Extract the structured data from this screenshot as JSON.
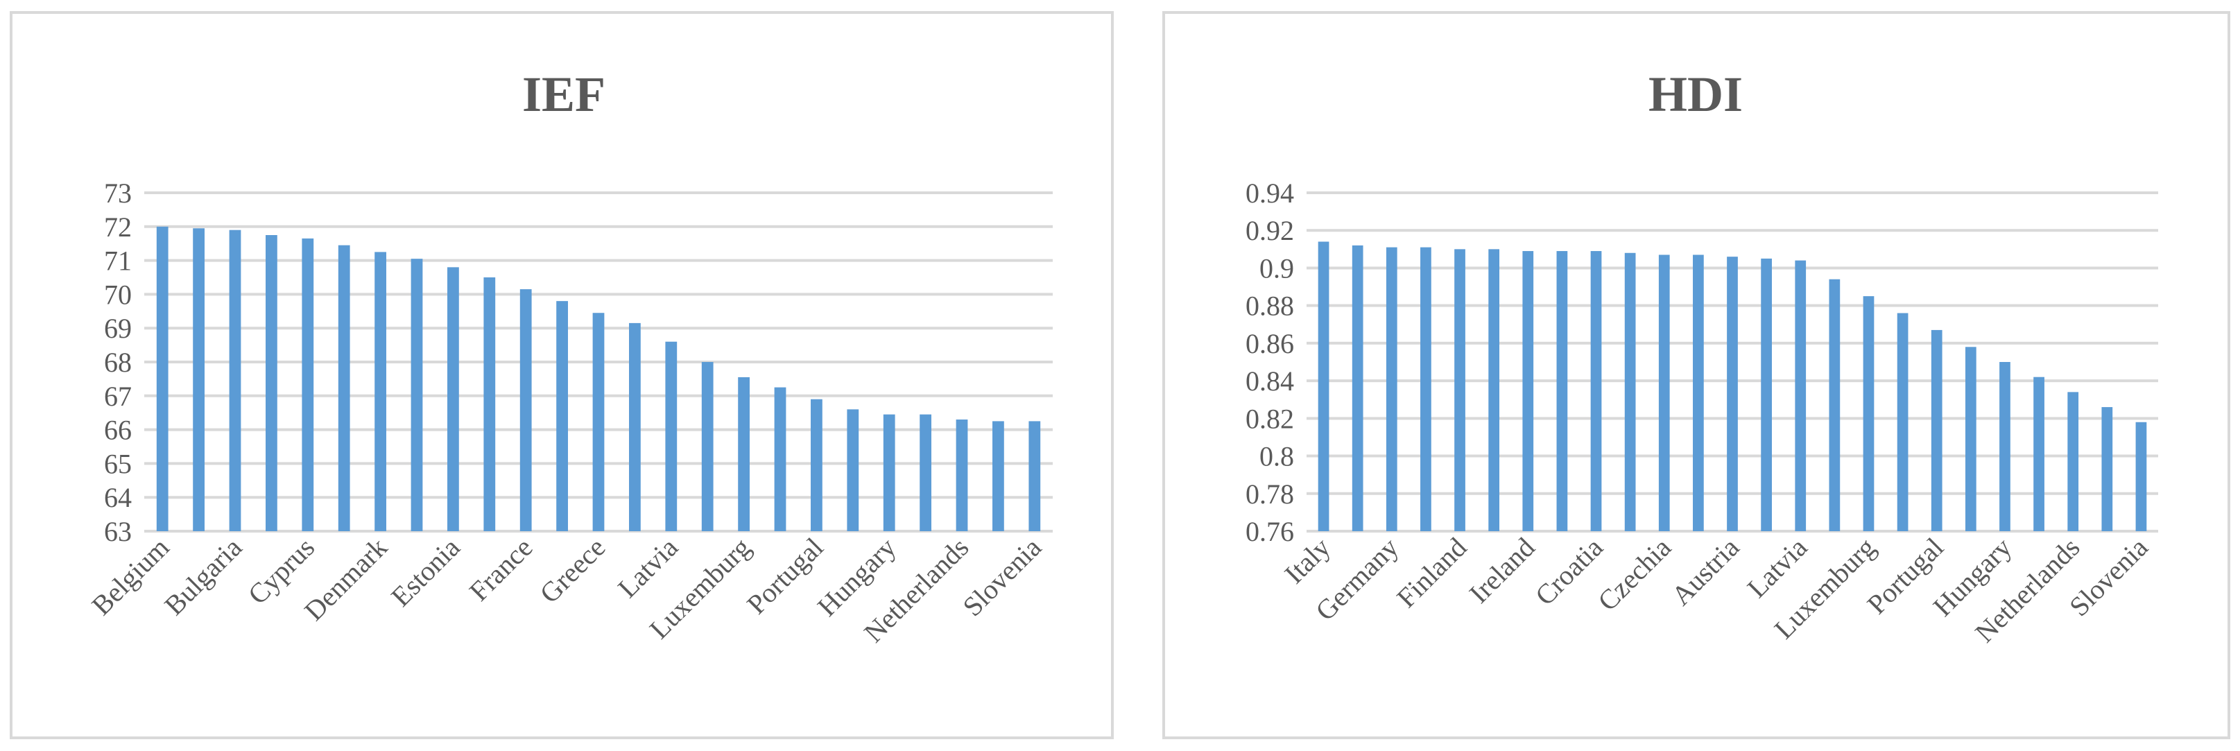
{
  "chart_data": [
    {
      "type": "bar",
      "title": "IEF",
      "xlabel": "",
      "ylabel": "",
      "ylim": [
        63,
        73
      ],
      "yticks": [
        63,
        64,
        65,
        66,
        67,
        68,
        69,
        70,
        71,
        72,
        73
      ],
      "grid": true,
      "color": "#5b9bd5",
      "categories": [
        "Belgium",
        "",
        "Bulgaria",
        "",
        "Cyprus",
        "",
        "Denmark",
        "",
        "Estonia",
        "",
        "France",
        "",
        "Greece",
        "",
        "Latvia",
        "",
        "Luxemburg",
        "",
        "Portugal",
        "",
        "Hungary",
        "",
        "Netherlands",
        "",
        "Slovenia"
      ],
      "values": [
        72.0,
        71.95,
        71.9,
        71.75,
        71.65,
        71.45,
        71.25,
        71.05,
        70.8,
        70.5,
        70.15,
        69.8,
        69.45,
        69.15,
        68.6,
        68.0,
        67.55,
        67.25,
        66.9,
        66.6,
        66.45,
        66.45,
        66.3,
        66.25,
        66.25
      ]
    },
    {
      "type": "bar",
      "title": "HDI",
      "xlabel": "",
      "ylabel": "",
      "ylim": [
        0.76,
        0.94
      ],
      "yticks": [
        0.76,
        0.78,
        0.8,
        0.82,
        0.84,
        0.86,
        0.88,
        0.9,
        0.92,
        0.94
      ],
      "grid": true,
      "color": "#5b9bd5",
      "categories": [
        "Italy",
        "",
        "Germany",
        "",
        "Finland",
        "",
        "Ireland",
        "",
        "Croatia",
        "",
        "Czechia",
        "",
        "Austria",
        "",
        "Latvia",
        "",
        "Luxemburg",
        "",
        "Portugal",
        "",
        "Hungary",
        "",
        "Netherlands",
        "",
        "Slovenia"
      ],
      "values": [
        0.914,
        0.912,
        0.911,
        0.911,
        0.91,
        0.91,
        0.909,
        0.909,
        0.909,
        0.908,
        0.907,
        0.907,
        0.906,
        0.905,
        0.904,
        0.894,
        0.885,
        0.876,
        0.867,
        0.858,
        0.85,
        0.842,
        0.834,
        0.826,
        0.818
      ]
    }
  ]
}
